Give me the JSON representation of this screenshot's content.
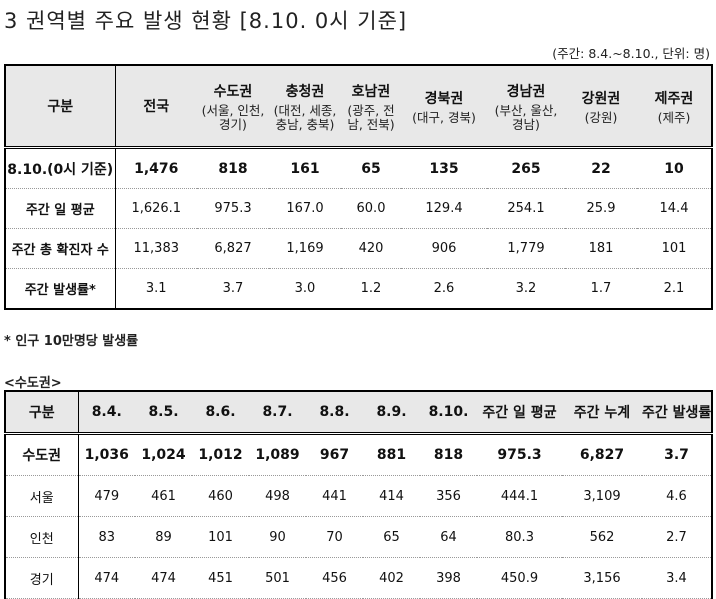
{
  "title": "3 권역별 주요 발생 현황 [8.10. 0시 기준]",
  "unit_note": "(주간: 8.4.~8.10., 단위: 명)",
  "table1": {
    "corner": "구분",
    "national": "전국",
    "regions": [
      {
        "name": "수도권",
        "sub": "(서울, 인천, 경기)"
      },
      {
        "name": "충청권",
        "sub": "(대전, 세종, 충남, 충북)"
      },
      {
        "name": "호남권",
        "sub": "(광주, 전남, 전북)"
      },
      {
        "name": "경북권",
        "sub": "(대구, 경북)"
      },
      {
        "name": "경남권",
        "sub": "(부산, 울산, 경남)"
      },
      {
        "name": "강원권",
        "sub": "(강원)"
      },
      {
        "name": "제주권",
        "sub": "(제주)"
      }
    ],
    "rows": [
      {
        "label": "8.10.(0시 기준)",
        "values": [
          "1,476",
          "818",
          "161",
          "65",
          "135",
          "265",
          "22",
          "10"
        ]
      },
      {
        "label": "주간 일 평균",
        "values": [
          "1,626.1",
          "975.3",
          "167.0",
          "60.0",
          "129.4",
          "254.1",
          "25.9",
          "14.4"
        ]
      },
      {
        "label": "주간 총 확진자 수",
        "values": [
          "11,383",
          "6,827",
          "1,169",
          "420",
          "906",
          "1,779",
          "181",
          "101"
        ]
      },
      {
        "label": "주간 발생률*",
        "values": [
          "3.1",
          "3.7",
          "3.0",
          "1.2",
          "2.6",
          "3.2",
          "1.7",
          "2.1"
        ]
      }
    ]
  },
  "footnote": "* 인구 10만명당 발생률",
  "subtitle": "<수도권>",
  "table2": {
    "headers": [
      "구분",
      "8.4.",
      "8.5.",
      "8.6.",
      "8.7.",
      "8.8.",
      "8.9.",
      "8.10.",
      "주간 일 평균",
      "주간 누계",
      "주간 발생률"
    ],
    "rows": [
      {
        "label": "수도권",
        "values": [
          "1,036",
          "1,024",
          "1,012",
          "1,089",
          "967",
          "881",
          "818",
          "975.3",
          "6,827",
          "3.7"
        ]
      },
      {
        "label": "서울",
        "values": [
          "479",
          "461",
          "460",
          "498",
          "441",
          "414",
          "356",
          "444.1",
          "3,109",
          "4.6"
        ]
      },
      {
        "label": "인천",
        "values": [
          "83",
          "89",
          "101",
          "90",
          "70",
          "65",
          "64",
          "80.3",
          "562",
          "2.7"
        ]
      },
      {
        "label": "경기",
        "values": [
          "474",
          "474",
          "451",
          "501",
          "456",
          "402",
          "398",
          "450.9",
          "3,156",
          "3.4"
        ]
      }
    ]
  }
}
